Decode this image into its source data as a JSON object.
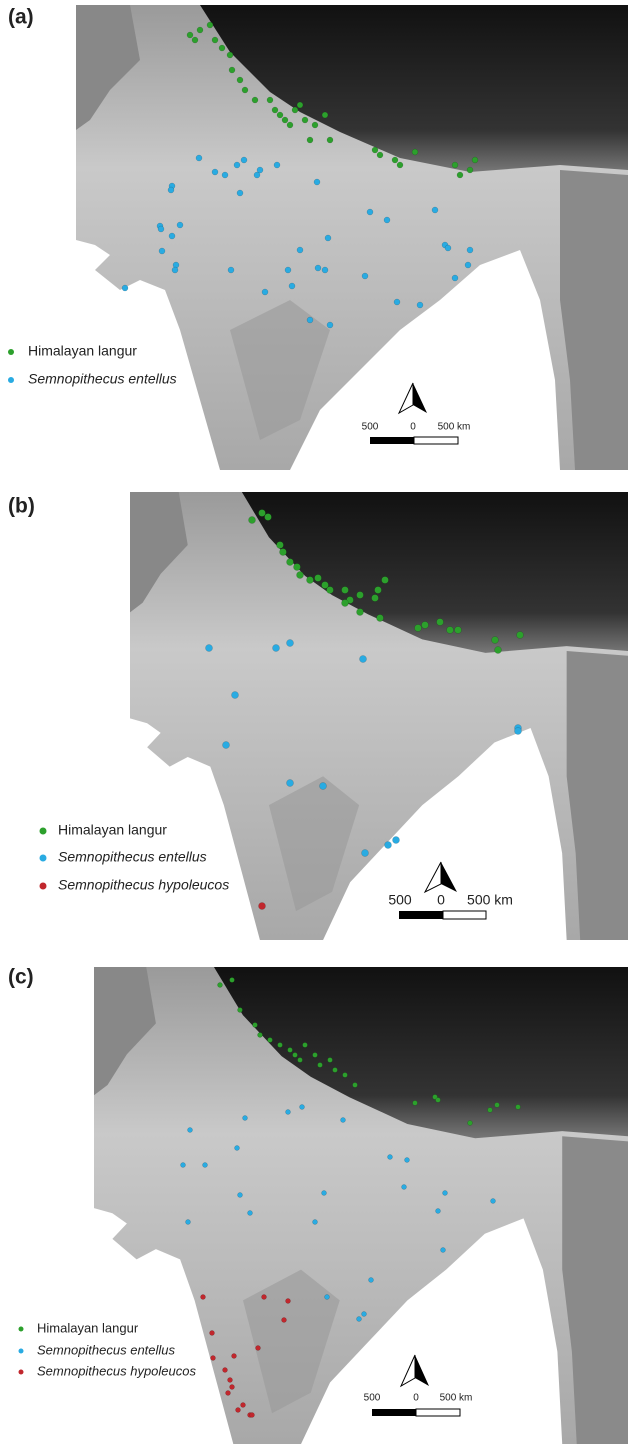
{
  "panels": [
    {
      "label": "(a)",
      "legend": [
        "Himalayan langur",
        "Semnopithecus entellus"
      ],
      "scale_bar": {
        "left": "500",
        "middle": "0",
        "right": "500 km"
      }
    },
    {
      "label": "(b)",
      "legend": [
        "Himalayan langur",
        "Semnopithecus entellus",
        "Semnopithecus hypoleucos"
      ],
      "scale_bar": {
        "left": "500",
        "middle": "0",
        "right": "500 km"
      }
    },
    {
      "label": "(c)",
      "legend": [
        "Himalayan langur",
        "Semnopithecus entellus",
        "Semnopithecus hypoleucos"
      ],
      "scale_bar": {
        "left": "500",
        "middle": "0",
        "right": "500 km"
      }
    }
  ]
}
